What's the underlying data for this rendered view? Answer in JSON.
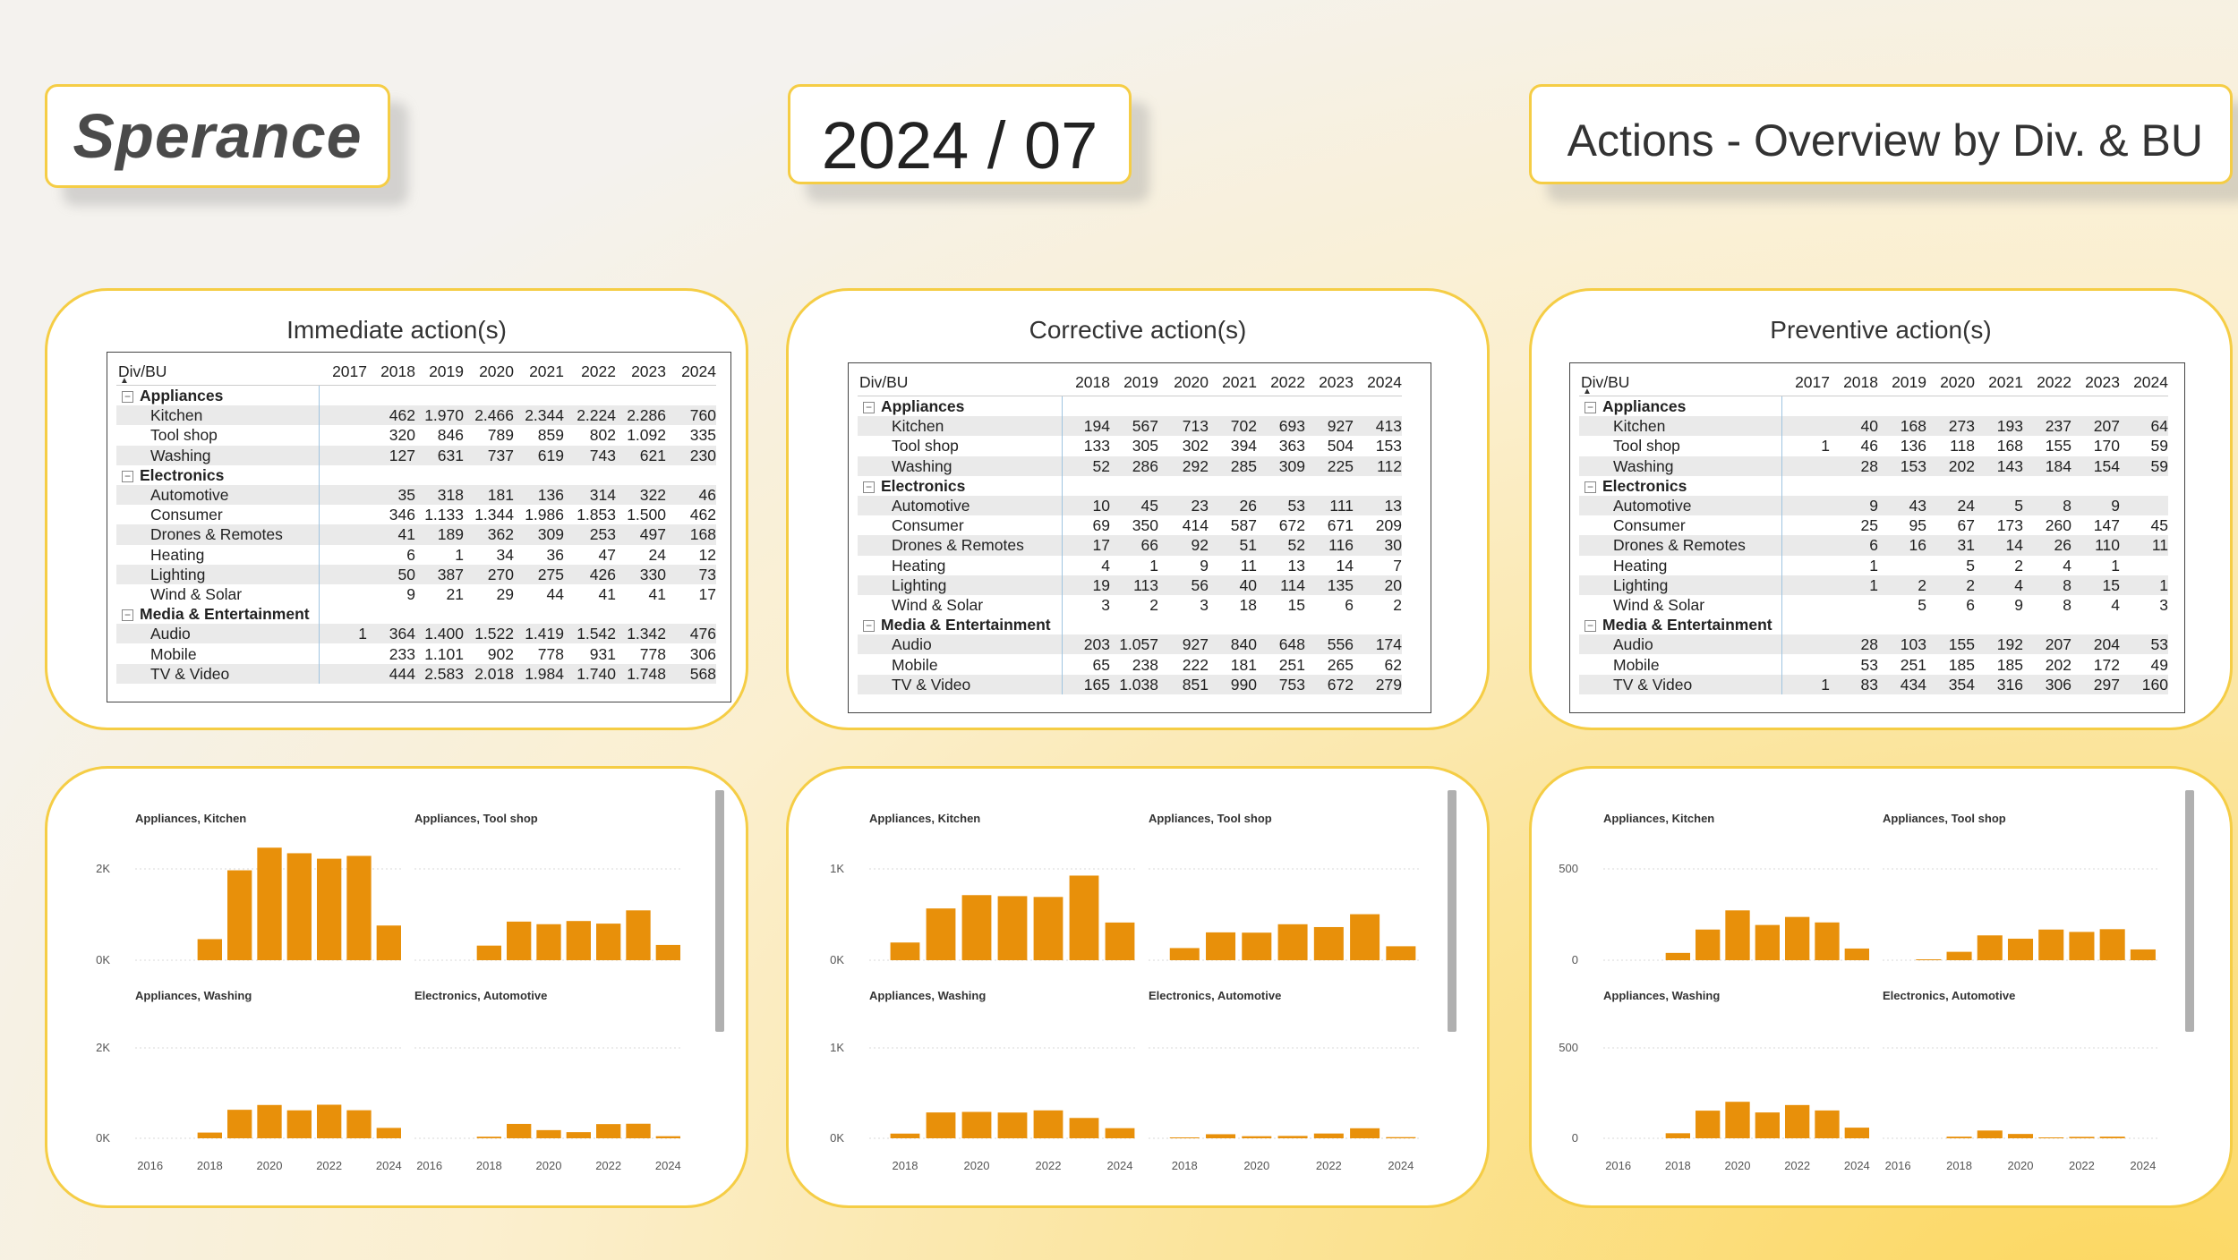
{
  "header": {
    "logo": "Sperance",
    "period": "2024 / 07",
    "title": "Actions - Overview by Div. & BU"
  },
  "tables": [
    {
      "title": "Immediate action(s)",
      "columns": [
        "Div/BU",
        "2017",
        "2018",
        "2019",
        "2020",
        "2021",
        "2022",
        "2023",
        "2024"
      ],
      "groups": [
        {
          "name": "Appliances",
          "rows": [
            {
              "name": "Kitchen",
              "values": [
                "",
                "462",
                "1.970",
                "2.466",
                "2.344",
                "2.224",
                "2.286",
                "760"
              ]
            },
            {
              "name": "Tool shop",
              "values": [
                "",
                "320",
                "846",
                "789",
                "859",
                "802",
                "1.092",
                "335"
              ]
            },
            {
              "name": "Washing",
              "values": [
                "",
                "127",
                "631",
                "737",
                "619",
                "743",
                "621",
                "230"
              ]
            }
          ]
        },
        {
          "name": "Electronics",
          "rows": [
            {
              "name": "Automotive",
              "values": [
                "",
                "35",
                "318",
                "181",
                "136",
                "314",
                "322",
                "46"
              ]
            },
            {
              "name": "Consumer",
              "values": [
                "",
                "346",
                "1.133",
                "1.344",
                "1.986",
                "1.853",
                "1.500",
                "462"
              ]
            },
            {
              "name": "Drones & Remotes",
              "values": [
                "",
                "41",
                "189",
                "362",
                "309",
                "253",
                "497",
                "168"
              ]
            },
            {
              "name": "Heating",
              "values": [
                "",
                "6",
                "1",
                "34",
                "36",
                "47",
                "24",
                "12"
              ]
            },
            {
              "name": "Lighting",
              "values": [
                "",
                "50",
                "387",
                "270",
                "275",
                "426",
                "330",
                "73"
              ]
            },
            {
              "name": "Wind & Solar",
              "values": [
                "",
                "9",
                "21",
                "29",
                "44",
                "41",
                "41",
                "17"
              ]
            }
          ]
        },
        {
          "name": "Media & Entertainment",
          "rows": [
            {
              "name": "Audio",
              "values": [
                "1",
                "364",
                "1.400",
                "1.522",
                "1.419",
                "1.542",
                "1.342",
                "476"
              ]
            },
            {
              "name": "Mobile",
              "values": [
                "",
                "233",
                "1.101",
                "902",
                "778",
                "931",
                "778",
                "306"
              ]
            },
            {
              "name": "TV & Video",
              "values": [
                "",
                "444",
                "2.583",
                "2.018",
                "1.984",
                "1.740",
                "1.748",
                "568"
              ]
            }
          ]
        }
      ]
    },
    {
      "title": "Corrective action(s)",
      "columns": [
        "Div/BU",
        "2018",
        "2019",
        "2020",
        "2021",
        "2022",
        "2023",
        "2024"
      ],
      "groups": [
        {
          "name": "Appliances",
          "rows": [
            {
              "name": "Kitchen",
              "values": [
                "194",
                "567",
                "713",
                "702",
                "693",
                "927",
                "413"
              ]
            },
            {
              "name": "Tool shop",
              "values": [
                "133",
                "305",
                "302",
                "394",
                "363",
                "504",
                "153"
              ]
            },
            {
              "name": "Washing",
              "values": [
                "52",
                "286",
                "292",
                "285",
                "309",
                "225",
                "112"
              ]
            }
          ]
        },
        {
          "name": "Electronics",
          "rows": [
            {
              "name": "Automotive",
              "values": [
                "10",
                "45",
                "23",
                "26",
                "53",
                "111",
                "13"
              ]
            },
            {
              "name": "Consumer",
              "values": [
                "69",
                "350",
                "414",
                "587",
                "672",
                "671",
                "209"
              ]
            },
            {
              "name": "Drones & Remotes",
              "values": [
                "17",
                "66",
                "92",
                "51",
                "52",
                "116",
                "30"
              ]
            },
            {
              "name": "Heating",
              "values": [
                "4",
                "1",
                "9",
                "11",
                "13",
                "14",
                "7"
              ]
            },
            {
              "name": "Lighting",
              "values": [
                "19",
                "113",
                "56",
                "40",
                "114",
                "135",
                "20"
              ]
            },
            {
              "name": "Wind & Solar",
              "values": [
                "3",
                "2",
                "3",
                "18",
                "15",
                "6",
                "2"
              ]
            }
          ]
        },
        {
          "name": "Media & Entertainment",
          "rows": [
            {
              "name": "Audio",
              "values": [
                "203",
                "1.057",
                "927",
                "840",
                "648",
                "556",
                "174"
              ]
            },
            {
              "name": "Mobile",
              "values": [
                "65",
                "238",
                "222",
                "181",
                "251",
                "265",
                "62"
              ]
            },
            {
              "name": "TV & Video",
              "values": [
                "165",
                "1.038",
                "851",
                "990",
                "753",
                "672",
                "279"
              ]
            }
          ]
        }
      ]
    },
    {
      "title": "Preventive action(s)",
      "columns": [
        "Div/BU",
        "2017",
        "2018",
        "2019",
        "2020",
        "2021",
        "2022",
        "2023",
        "2024"
      ],
      "groups": [
        {
          "name": "Appliances",
          "rows": [
            {
              "name": "Kitchen",
              "values": [
                "",
                "40",
                "168",
                "273",
                "193",
                "237",
                "207",
                "64"
              ]
            },
            {
              "name": "Tool shop",
              "values": [
                "1",
                "46",
                "136",
                "118",
                "168",
                "155",
                "170",
                "59"
              ]
            },
            {
              "name": "Washing",
              "values": [
                "",
                "28",
                "153",
                "202",
                "143",
                "184",
                "154",
                "59"
              ]
            }
          ]
        },
        {
          "name": "Electronics",
          "rows": [
            {
              "name": "Automotive",
              "values": [
                "",
                "9",
                "43",
                "24",
                "5",
                "8",
                "9",
                ""
              ]
            },
            {
              "name": "Consumer",
              "values": [
                "",
                "25",
                "95",
                "67",
                "173",
                "260",
                "147",
                "45"
              ]
            },
            {
              "name": "Drones & Remotes",
              "values": [
                "",
                "6",
                "16",
                "31",
                "14",
                "26",
                "110",
                "11"
              ]
            },
            {
              "name": "Heating",
              "values": [
                "",
                "1",
                "",
                "5",
                "2",
                "4",
                "1",
                ""
              ]
            },
            {
              "name": "Lighting",
              "values": [
                "",
                "1",
                "2",
                "2",
                "4",
                "8",
                "15",
                "1"
              ]
            },
            {
              "name": "Wind & Solar",
              "values": [
                "",
                "",
                "5",
                "6",
                "9",
                "8",
                "4",
                "3"
              ]
            }
          ]
        },
        {
          "name": "Media & Entertainment",
          "rows": [
            {
              "name": "Audio",
              "values": [
                "",
                "28",
                "103",
                "155",
                "192",
                "207",
                "204",
                "53"
              ]
            },
            {
              "name": "Mobile",
              "values": [
                "",
                "53",
                "251",
                "185",
                "185",
                "202",
                "172",
                "49"
              ]
            },
            {
              "name": "TV & Video",
              "values": [
                "1",
                "83",
                "434",
                "354",
                "316",
                "306",
                "297",
                "160"
              ]
            }
          ]
        }
      ]
    }
  ],
  "chart_data": [
    {
      "type": "bar",
      "panel": "immediate",
      "x_ticks": [
        "2016",
        "2018",
        "2020",
        "2022",
        "2024"
      ],
      "x_range": [
        2016,
        2024
      ],
      "y_ticks": [
        "0K",
        "2K"
      ],
      "y_tick_values": [
        0,
        2000
      ],
      "ylim": [
        0,
        2600
      ],
      "series": [
        {
          "name": "Appliances, Kitchen",
          "x": [
            2018,
            2019,
            2020,
            2021,
            2022,
            2023,
            2024
          ],
          "values": [
            462,
            1970,
            2466,
            2344,
            2224,
            2286,
            760
          ]
        },
        {
          "name": "Appliances, Tool shop",
          "x": [
            2018,
            2019,
            2020,
            2021,
            2022,
            2023,
            2024
          ],
          "values": [
            320,
            846,
            789,
            859,
            802,
            1092,
            335
          ]
        },
        {
          "name": "Appliances, Washing",
          "x": [
            2018,
            2019,
            2020,
            2021,
            2022,
            2023,
            2024
          ],
          "values": [
            127,
            631,
            737,
            619,
            743,
            621,
            230
          ]
        },
        {
          "name": "Electronics, Automotive",
          "x": [
            2018,
            2019,
            2020,
            2021,
            2022,
            2023,
            2024
          ],
          "values": [
            35,
            318,
            181,
            136,
            314,
            322,
            46
          ]
        }
      ]
    },
    {
      "type": "bar",
      "panel": "corrective",
      "x_ticks": [
        "2018",
        "2020",
        "2022",
        "2024"
      ],
      "x_range": [
        2017.5,
        2024
      ],
      "y_ticks": [
        "0K",
        "1K"
      ],
      "y_tick_values": [
        0,
        1000
      ],
      "ylim": [
        0,
        1000
      ],
      "series": [
        {
          "name": "Appliances, Kitchen",
          "x": [
            2018,
            2019,
            2020,
            2021,
            2022,
            2023,
            2024
          ],
          "values": [
            194,
            567,
            713,
            702,
            693,
            927,
            413
          ]
        },
        {
          "name": "Appliances, Tool shop",
          "x": [
            2018,
            2019,
            2020,
            2021,
            2022,
            2023,
            2024
          ],
          "values": [
            133,
            305,
            302,
            394,
            363,
            504,
            153
          ]
        },
        {
          "name": "Appliances, Washing",
          "x": [
            2018,
            2019,
            2020,
            2021,
            2022,
            2023,
            2024
          ],
          "values": [
            52,
            286,
            292,
            285,
            309,
            225,
            112
          ]
        },
        {
          "name": "Electronics, Automotive",
          "x": [
            2018,
            2019,
            2020,
            2021,
            2022,
            2023,
            2024
          ],
          "values": [
            10,
            45,
            23,
            26,
            53,
            111,
            13
          ]
        }
      ]
    },
    {
      "type": "bar",
      "panel": "preventive",
      "x_ticks": [
        "2016",
        "2018",
        "2020",
        "2022",
        "2024"
      ],
      "x_range": [
        2016,
        2024
      ],
      "y_ticks": [
        "0",
        "500"
      ],
      "y_tick_values": [
        0,
        500
      ],
      "ylim": [
        0,
        500
      ],
      "series": [
        {
          "name": "Appliances, Kitchen",
          "x": [
            2018,
            2019,
            2020,
            2021,
            2022,
            2023,
            2024
          ],
          "values": [
            40,
            168,
            273,
            193,
            237,
            207,
            64
          ]
        },
        {
          "name": "Appliances, Tool shop",
          "x": [
            2017,
            2018,
            2019,
            2020,
            2021,
            2022,
            2023,
            2024
          ],
          "values": [
            1,
            46,
            136,
            118,
            168,
            155,
            170,
            59
          ]
        },
        {
          "name": "Appliances, Washing",
          "x": [
            2018,
            2019,
            2020,
            2021,
            2022,
            2023,
            2024
          ],
          "values": [
            28,
            153,
            202,
            143,
            184,
            154,
            59
          ]
        },
        {
          "name": "Electronics, Automotive",
          "x": [
            2018,
            2019,
            2020,
            2021,
            2022,
            2023,
            2024
          ],
          "values": [
            9,
            43,
            24,
            5,
            8,
            9,
            0
          ]
        }
      ]
    }
  ],
  "colors": {
    "bar": "#e8900a",
    "panel_border": "#f5cd45",
    "grid": "#dddddd"
  }
}
